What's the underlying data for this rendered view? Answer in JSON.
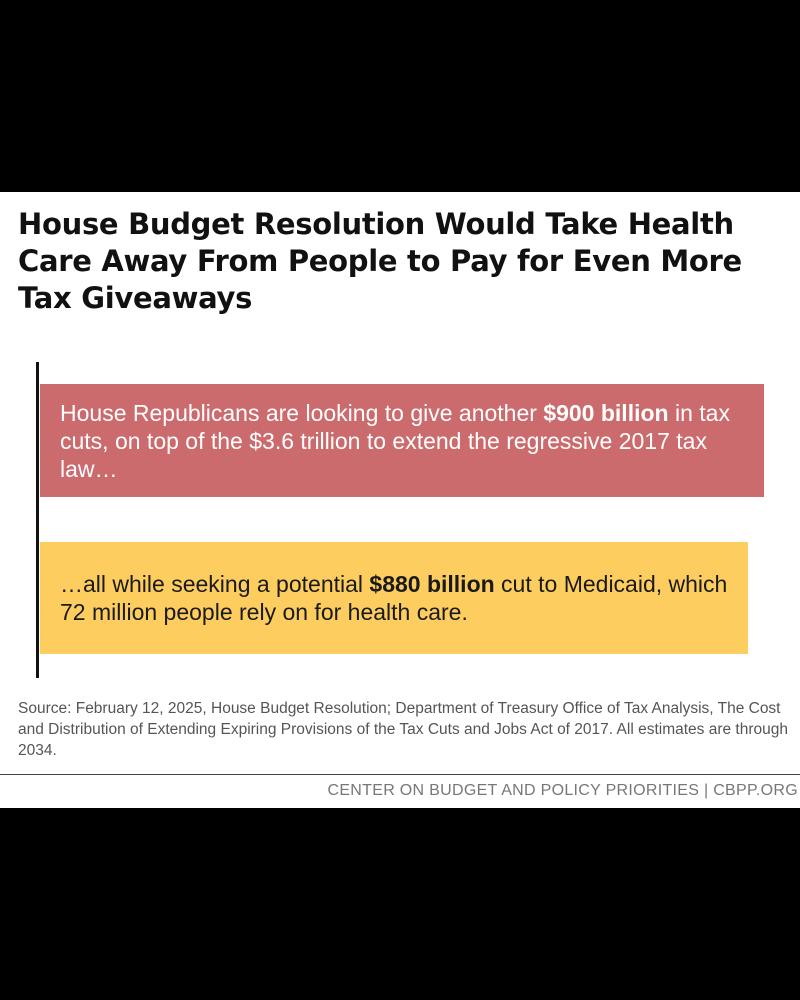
{
  "title": "House Budget Resolution Would Take Health Care Away From People to Pay for Even More Tax Giveaways",
  "bar_red": {
    "text_before": "House Republicans are looking to give another ",
    "highlight": "$900 billion",
    "text_after": " in tax cuts, on top of the $3.6 trillion to extend the regressive 2017 tax law…"
  },
  "bar_yellow": {
    "text_before": "…all while seeking a potential ",
    "highlight": "$880 billion",
    "text_after": " cut to Medicaid, which 72 million people rely on for health care."
  },
  "source": "Source: February 12, 2025, House Budget Resolution; Department of Treasury Office of Tax Analysis, The Cost and Distribution of Extending Expiring Provisions of the Tax Cuts and Jobs Act of 2017. All estimates are through 2034.",
  "footer": "CENTER ON BUDGET AND POLICY PRIORITIES | CBPP.ORG",
  "colors": {
    "red_bar": "#cc6b6d",
    "yellow_bar": "#fdcd5f",
    "background": "#000000"
  }
}
